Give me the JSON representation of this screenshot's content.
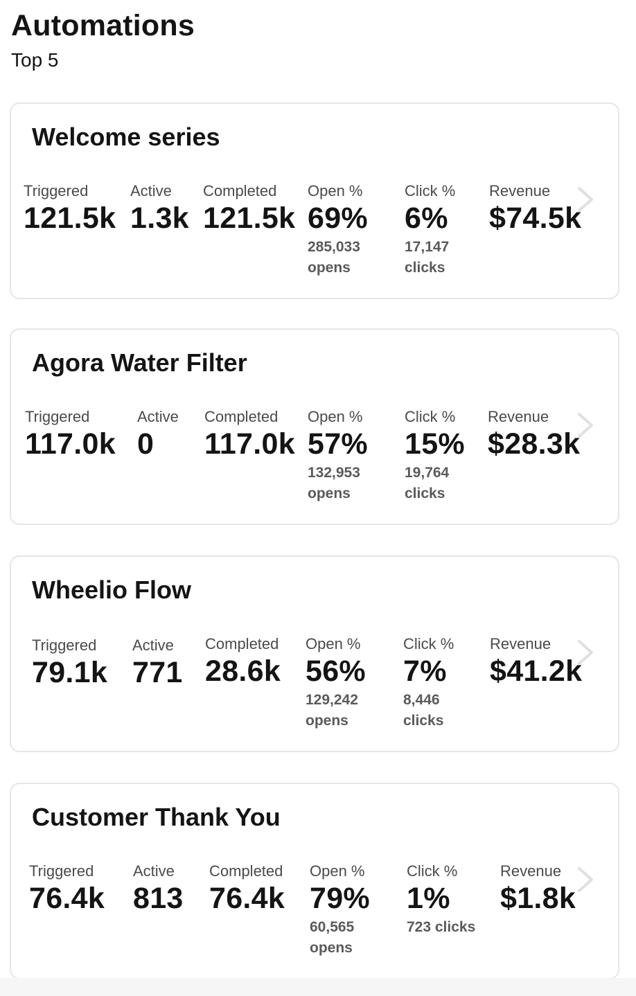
{
  "header": {
    "title": "Automations",
    "subtitle": "Top 5"
  },
  "labels": {
    "triggered": "Triggered",
    "active": "Active",
    "completed": "Completed",
    "open": "Open %",
    "click": "Click %",
    "revenue": "Revenue"
  },
  "cards": [
    {
      "name": "Welcome series",
      "triggered": "121.5k",
      "active": "1.3k",
      "completed": "121.5k",
      "open_pct": "69%",
      "opens": "285,033 opens",
      "click_pct": "6%",
      "clicks": "17,147 clicks",
      "revenue": "$74.5k"
    },
    {
      "name": "Agora Water Filter",
      "triggered": "117.0k",
      "active": "0",
      "completed": "117.0k",
      "open_pct": "57%",
      "opens": "132,953 opens",
      "click_pct": "15%",
      "clicks": "19,764 clicks",
      "revenue": "$28.3k"
    },
    {
      "name": "Wheelio Flow",
      "triggered": "79.1k",
      "active": "771",
      "completed": "28.6k",
      "open_pct": "56%",
      "opens": "129,242 opens",
      "click_pct": "7%",
      "clicks": "8,446 clicks",
      "revenue": "$41.2k"
    },
    {
      "name": "Customer Thank You",
      "triggered": "76.4k",
      "active": "813",
      "completed": "76.4k",
      "open_pct": "79%",
      "opens": "60,565 opens",
      "click_pct": "1%",
      "clicks": "723 clicks",
      "revenue": "$1.8k"
    }
  ],
  "icons": {
    "chevron": "chevron-right-icon"
  },
  "colors": {
    "text": "#141414",
    "muted": "#4a4a4a",
    "border": "#e6e6e6",
    "chevron": "#e0e0e0"
  }
}
